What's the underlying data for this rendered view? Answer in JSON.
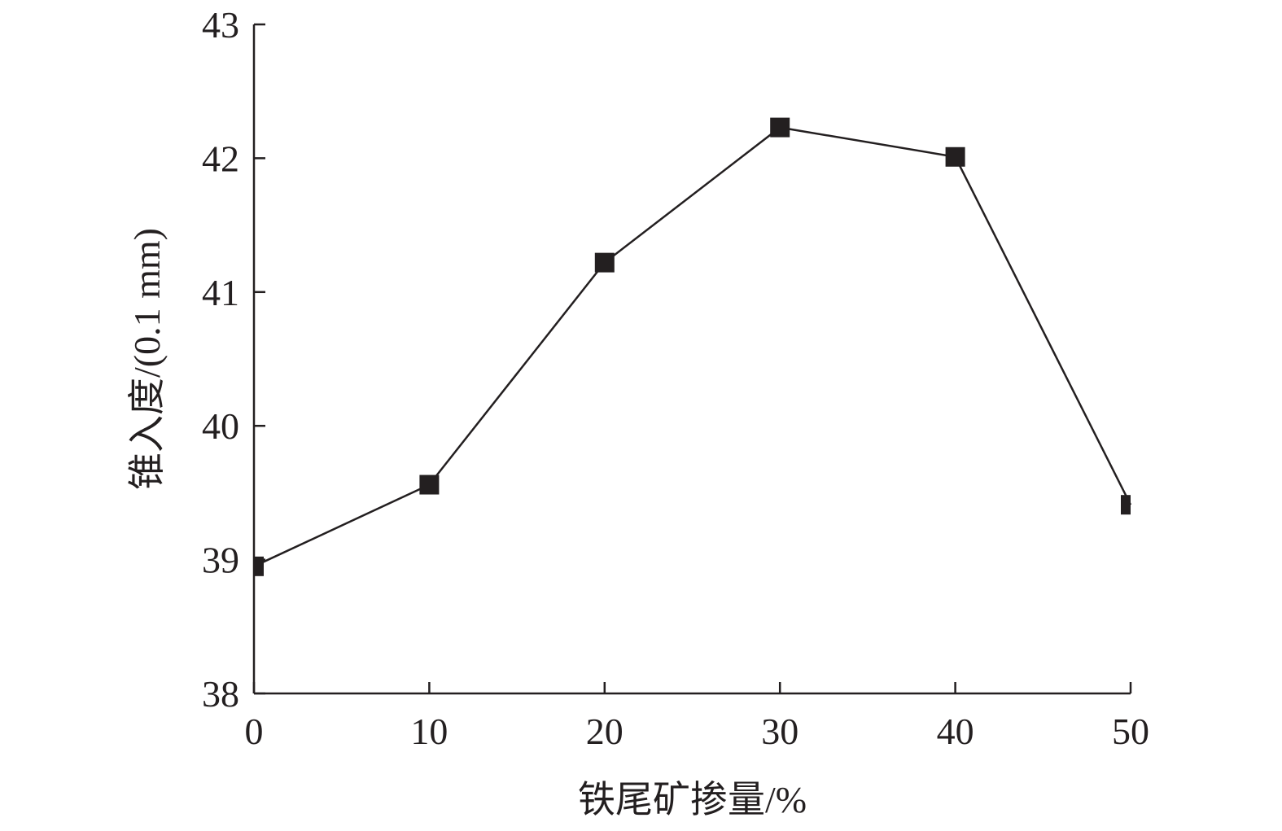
{
  "chart_data": {
    "type": "line",
    "title": "",
    "xlabel": "铁尾矿掺量/%",
    "ylabel": "锥入度/(0.1 mm)",
    "xlim": [
      0,
      50
    ],
    "ylim": [
      38,
      43
    ],
    "xticks": [
      0,
      10,
      20,
      30,
      40,
      50
    ],
    "yticks": [
      38,
      39,
      40,
      41,
      42,
      43
    ],
    "grid": false,
    "legend": "none",
    "marker": "square",
    "color": "#231f20",
    "series": [
      {
        "x": [
          0,
          10,
          20,
          30,
          40,
          50
        ],
        "values": [
          38.95,
          39.56,
          41.22,
          42.23,
          42.01,
          39.41
        ]
      }
    ]
  }
}
